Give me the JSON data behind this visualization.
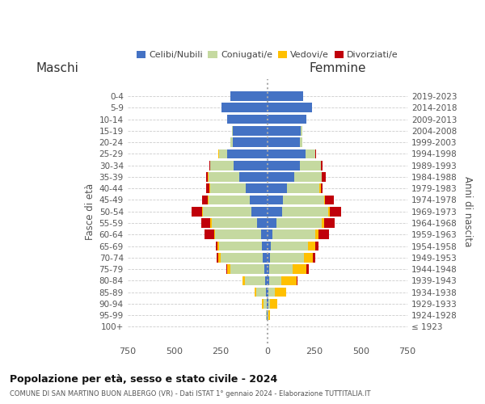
{
  "age_groups": [
    "100+",
    "95-99",
    "90-94",
    "85-89",
    "80-84",
    "75-79",
    "70-74",
    "65-69",
    "60-64",
    "55-59",
    "50-54",
    "45-49",
    "40-44",
    "35-39",
    "30-34",
    "25-29",
    "20-24",
    "15-19",
    "10-14",
    "5-9",
    "0-4"
  ],
  "birth_years": [
    "≤ 1923",
    "1924-1928",
    "1929-1933",
    "1934-1938",
    "1939-1943",
    "1944-1948",
    "1949-1953",
    "1954-1958",
    "1959-1963",
    "1964-1968",
    "1969-1973",
    "1974-1978",
    "1979-1983",
    "1984-1988",
    "1989-1993",
    "1994-1998",
    "1999-2003",
    "2004-2008",
    "2009-2013",
    "2014-2018",
    "2019-2023"
  ],
  "maschi": {
    "celibi": [
      0,
      2,
      5,
      8,
      12,
      18,
      25,
      28,
      35,
      55,
      85,
      95,
      115,
      150,
      180,
      215,
      185,
      185,
      215,
      245,
      200
    ],
    "coniugati": [
      0,
      5,
      18,
      50,
      110,
      180,
      225,
      230,
      245,
      245,
      260,
      220,
      190,
      165,
      125,
      45,
      12,
      5,
      0,
      0,
      0
    ],
    "vedovi": [
      0,
      2,
      5,
      10,
      12,
      18,
      15,
      10,
      5,
      5,
      5,
      5,
      5,
      3,
      2,
      2,
      2,
      0,
      0,
      0,
      0
    ],
    "divorziati": [
      0,
      0,
      0,
      0,
      0,
      5,
      5,
      8,
      50,
      50,
      55,
      30,
      18,
      12,
      5,
      0,
      0,
      0,
      0,
      0,
      0
    ]
  },
  "femmine": {
    "nubili": [
      0,
      2,
      3,
      5,
      8,
      10,
      12,
      18,
      25,
      50,
      80,
      85,
      105,
      145,
      175,
      205,
      175,
      180,
      210,
      240,
      190
    ],
    "coniugate": [
      0,
      3,
      12,
      35,
      65,
      125,
      185,
      200,
      230,
      240,
      245,
      220,
      175,
      145,
      110,
      50,
      12,
      5,
      0,
      0,
      0
    ],
    "vedove": [
      0,
      8,
      38,
      60,
      85,
      75,
      48,
      38,
      18,
      12,
      8,
      5,
      5,
      3,
      2,
      2,
      0,
      0,
      0,
      0,
      0
    ],
    "divorziate": [
      0,
      0,
      0,
      0,
      3,
      12,
      12,
      18,
      55,
      60,
      60,
      48,
      12,
      18,
      8,
      3,
      0,
      0,
      0,
      0,
      0
    ]
  },
  "colors": {
    "celibi": "#4472c4",
    "coniugati": "#c5d9a0",
    "vedovi": "#ffc000",
    "divorziati": "#c0000a"
  },
  "title": "Popolazione per età, sesso e stato civile - 2024",
  "subtitle": "COMUNE DI SAN MARTINO BUON ALBERGO (VR) - Dati ISTAT 1° gennaio 2024 - Elaborazione TUTTITALIA.IT",
  "xlabel_left": "Maschi",
  "xlabel_right": "Femmine",
  "ylabel_left": "Fasce di età",
  "ylabel_right": "Anni di nascita",
  "xlim": 750,
  "bg_color": "#ffffff",
  "grid_color": "#cccccc",
  "legend_labels": [
    "Celibi/Nubili",
    "Coniugati/e",
    "Vedovi/e",
    "Divorziati/e"
  ]
}
